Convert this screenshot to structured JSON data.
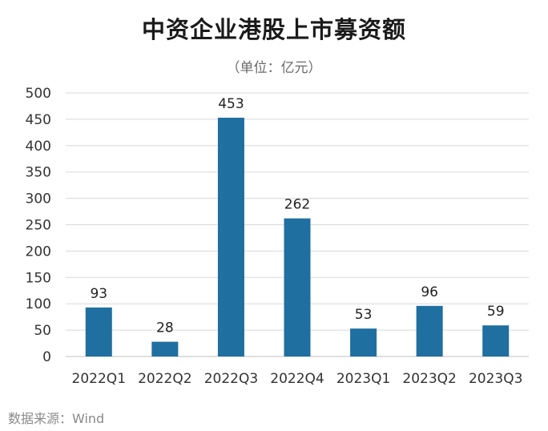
{
  "title": "中资企业港股上市募资额",
  "subtitle": "（单位：亿元）",
  "source": "数据来源：Wind",
  "colors": {
    "bar": "#1f6fa0",
    "grid": "#d9d9d9",
    "axis_text": "#333333"
  },
  "chart_data": {
    "type": "bar",
    "categories": [
      "2022Q1",
      "2022Q2",
      "2022Q3",
      "2022Q4",
      "2023Q1",
      "2023Q2",
      "2023Q3"
    ],
    "values": [
      93,
      28,
      453,
      262,
      53,
      96,
      59
    ],
    "ylim": [
      0,
      500
    ],
    "yticks": [
      0,
      50,
      100,
      150,
      200,
      250,
      300,
      350,
      400,
      450,
      500
    ],
    "grid": true,
    "data_labels": true
  }
}
